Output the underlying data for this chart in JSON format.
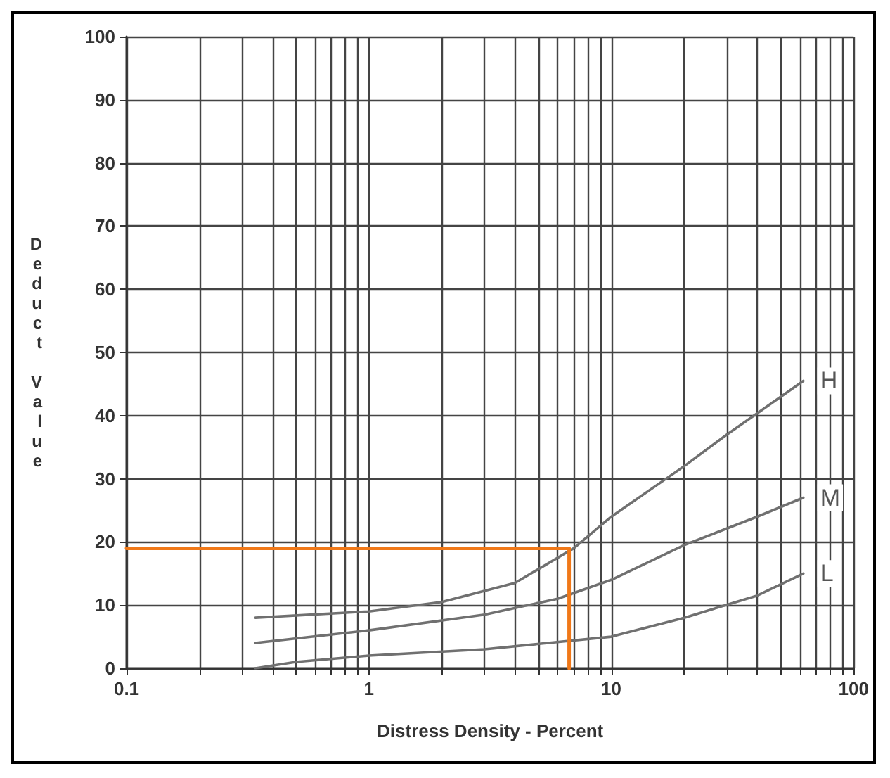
{
  "chart_data": {
    "type": "line",
    "xlabel": "Distress Density - Percent",
    "ylabel": "Deduct Value",
    "log": "x",
    "grid": true,
    "legend": false,
    "marker": "none",
    "line_style": "solid",
    "xlim": [
      0.1,
      100
    ],
    "xticks": [
      0.1,
      {
        "value": 0.2,
        "label": null
      },
      {
        "value": 0.3,
        "label": null
      },
      {
        "value": 0.4,
        "label": null
      },
      {
        "value": 0.5,
        "label": null
      },
      {
        "value": 0.6,
        "label": null
      },
      {
        "value": 0.7,
        "label": null
      },
      {
        "value": 0.8,
        "label": null
      },
      {
        "value": 0.9,
        "label": null
      },
      1,
      {
        "value": 2,
        "label": null
      },
      {
        "value": 3,
        "label": null
      },
      {
        "value": 4,
        "label": null
      },
      {
        "value": 5,
        "label": null
      },
      {
        "value": 6,
        "label": null
      },
      {
        "value": 7,
        "label": null
      },
      {
        "value": 8,
        "label": null
      },
      {
        "value": 9,
        "label": null
      },
      10,
      {
        "value": 20,
        "label": null
      },
      {
        "value": 30,
        "label": null
      },
      {
        "value": 40,
        "label": null
      },
      {
        "value": 50,
        "label": null
      },
      {
        "value": 60,
        "label": null
      },
      {
        "value": 70,
        "label": null
      },
      {
        "value": 80,
        "label": null
      },
      {
        "value": 90,
        "label": null
      },
      100
    ],
    "ylim": [
      0,
      100
    ],
    "yticks": [
      0,
      10,
      20,
      30,
      40,
      50,
      60,
      70,
      80,
      90,
      100
    ],
    "series": [
      {
        "name": "H",
        "color": "#707070",
        "x": [
          0.34,
          1,
          2,
          4,
          7,
          10,
          20,
          30,
          62
        ],
        "values": [
          8,
          9,
          10.5,
          13.5,
          19,
          24,
          32,
          37,
          45.5
        ]
      },
      {
        "name": "M",
        "color": "#707070",
        "x": [
          0.34,
          1,
          3,
          6,
          10,
          20,
          40,
          62
        ],
        "values": [
          4,
          6,
          8.5,
          11,
          14,
          19.5,
          24,
          27
        ]
      },
      {
        "name": "L",
        "color": "#707070",
        "x": [
          0.34,
          0.5,
          1,
          3,
          10,
          20,
          40,
          62
        ],
        "values": [
          0,
          1,
          2,
          3,
          5,
          8,
          11.5,
          15
        ]
      },
      {
        "color": "#f07818",
        "x": [
          0.1,
          6.7,
          6.7
        ],
        "values": [
          19,
          19,
          0
        ]
      }
    ]
  }
}
